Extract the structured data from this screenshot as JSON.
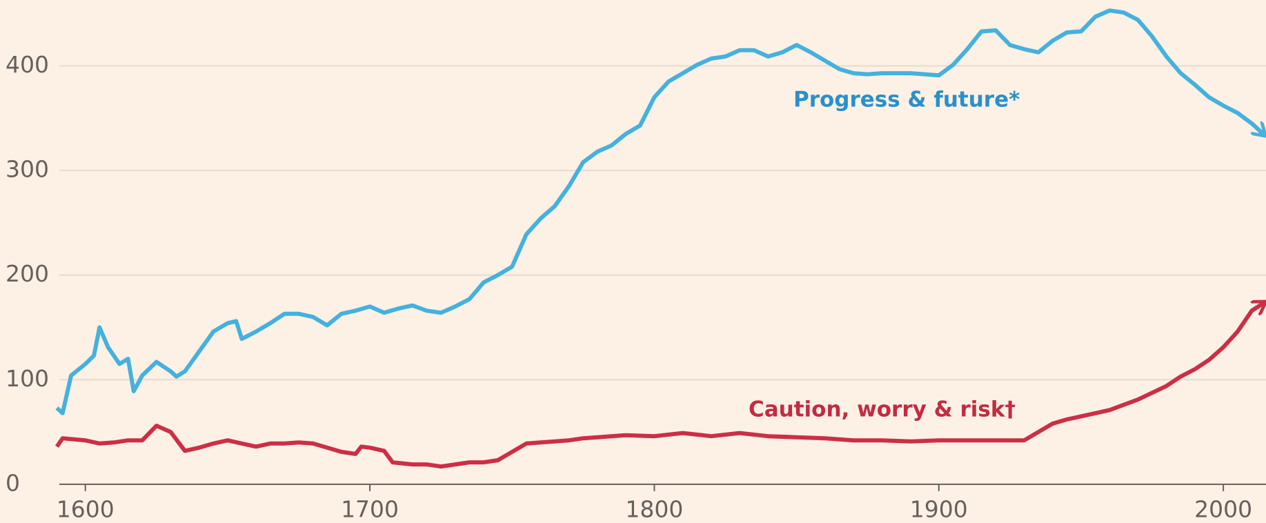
{
  "chart_data": {
    "type": "line",
    "series": [
      {
        "name": "Progress & future*",
        "color": "#45b1dd",
        "label_color": "#2a8fcb",
        "x": [
          1590,
          1592,
          1595,
          1600,
          1603,
          1605,
          1608,
          1612,
          1615,
          1617,
          1620,
          1625,
          1630,
          1632,
          1635,
          1640,
          1645,
          1650,
          1653,
          1655,
          1660,
          1665,
          1670,
          1675,
          1680,
          1685,
          1690,
          1695,
          1700,
          1705,
          1710,
          1715,
          1720,
          1725,
          1730,
          1735,
          1740,
          1745,
          1750,
          1755,
          1760,
          1765,
          1770,
          1775,
          1780,
          1785,
          1790,
          1795,
          1800,
          1805,
          1810,
          1815,
          1820,
          1825,
          1830,
          1835,
          1840,
          1845,
          1850,
          1855,
          1860,
          1865,
          1870,
          1875,
          1880,
          1885,
          1890,
          1895,
          1900,
          1905,
          1910,
          1915,
          1920,
          1925,
          1930,
          1935,
          1940,
          1945,
          1950,
          1955,
          1960,
          1965,
          1970,
          1975,
          1980,
          1985,
          1990,
          1995,
          2000,
          2005,
          2010,
          2014
        ],
        "values": [
          73,
          68,
          104,
          115,
          123,
          150,
          131,
          115,
          120,
          89,
          104,
          117,
          108,
          103,
          108,
          127,
          146,
          154,
          156,
          139,
          146,
          154,
          163,
          163,
          160,
          152,
          163,
          166,
          170,
          164,
          168,
          171,
          166,
          164,
          170,
          177,
          193,
          200,
          208,
          239,
          254,
          266,
          285,
          308,
          318,
          324,
          335,
          343,
          370,
          385,
          393,
          401,
          407,
          409,
          415,
          415,
          409,
          413,
          420,
          413,
          405,
          397,
          393,
          392,
          393,
          393,
          393,
          392,
          391,
          401,
          416,
          433,
          434,
          420,
          416,
          413,
          424,
          432,
          433,
          447,
          453,
          451,
          444,
          428,
          409,
          393,
          382,
          370,
          362,
          355,
          345,
          335
        ]
      },
      {
        "name": "Caution, worry & risk†",
        "color": "#cc2f45",
        "label_color": "#c42a40",
        "x": [
          1590,
          1592,
          1600,
          1605,
          1610,
          1615,
          1620,
          1625,
          1630,
          1635,
          1640,
          1645,
          1650,
          1655,
          1660,
          1665,
          1670,
          1675,
          1680,
          1685,
          1690,
          1695,
          1697,
          1700,
          1705,
          1708,
          1715,
          1720,
          1725,
          1730,
          1735,
          1740,
          1745,
          1750,
          1755,
          1760,
          1765,
          1770,
          1775,
          1780,
          1785,
          1790,
          1800,
          1810,
          1820,
          1830,
          1840,
          1850,
          1860,
          1870,
          1880,
          1890,
          1900,
          1910,
          1920,
          1930,
          1935,
          1940,
          1945,
          1950,
          1960,
          1970,
          1980,
          1985,
          1990,
          1995,
          2000,
          2005,
          2010,
          2014
        ],
        "values": [
          36,
          44,
          42,
          39,
          40,
          42,
          42,
          56,
          50,
          32,
          35,
          39,
          42,
          39,
          36,
          39,
          39,
          40,
          39,
          35,
          31,
          29,
          36,
          35,
          32,
          21,
          19,
          19,
          17,
          19,
          21,
          21,
          23,
          31,
          39,
          40,
          41,
          42,
          44,
          45,
          46,
          47,
          46,
          49,
          46,
          49,
          46,
          45,
          44,
          42,
          42,
          41,
          42,
          42,
          42,
          42,
          50,
          58,
          62,
          65,
          71,
          81,
          94,
          103,
          110,
          119,
          131,
          146,
          166,
          173
        ]
      }
    ],
    "xlim": [
      1570,
      2015
    ],
    "ylim": [
      -37,
      463
    ],
    "xticks": [
      1600,
      1700,
      1800,
      1900,
      2000
    ],
    "yticks": [
      0,
      100,
      200,
      300,
      400
    ],
    "grid": true
  }
}
